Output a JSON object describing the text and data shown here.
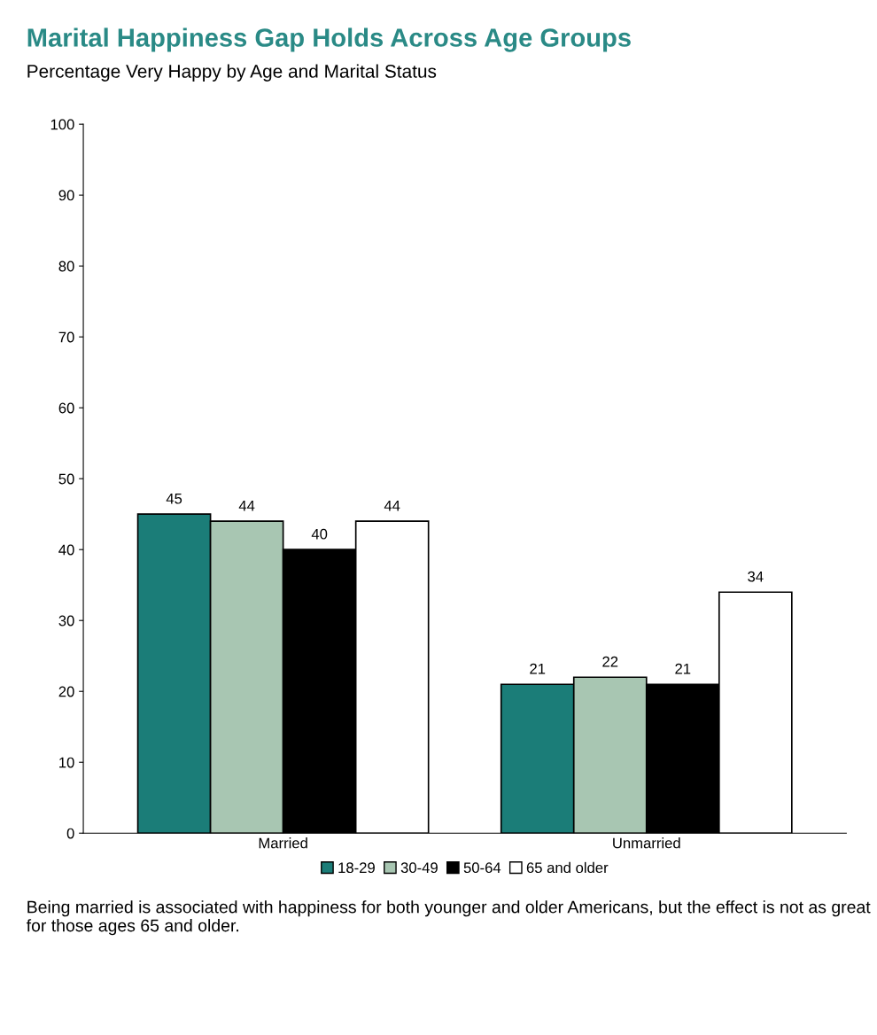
{
  "chart_data": {
    "type": "bar",
    "title": "Marital Happiness Gap Holds Across Age Groups",
    "subtitle": "Percentage Very Happy by Age and Marital Status",
    "categories": [
      "Married",
      "Unmarried"
    ],
    "series": [
      {
        "name": "18-29",
        "color": "#1b7d78",
        "values": [
          45,
          21
        ]
      },
      {
        "name": "30-49",
        "color": "#a8c6b2",
        "values": [
          44,
          22
        ]
      },
      {
        "name": "50-64",
        "color": "#000000",
        "values": [
          40,
          21
        ]
      },
      {
        "name": "65 and older",
        "color": "#ffffff",
        "values": [
          44,
          34
        ]
      }
    ],
    "ylim": [
      0,
      100
    ],
    "yticks": [
      0,
      10,
      20,
      30,
      40,
      50,
      60,
      70,
      80,
      90,
      100
    ],
    "data_labels": true,
    "grid": false,
    "legend": "bottom",
    "annotations": [
      "Being married is associated with happiness for both younger and older Americans, but the effect is not as great for those ages 65 and older."
    ]
  }
}
